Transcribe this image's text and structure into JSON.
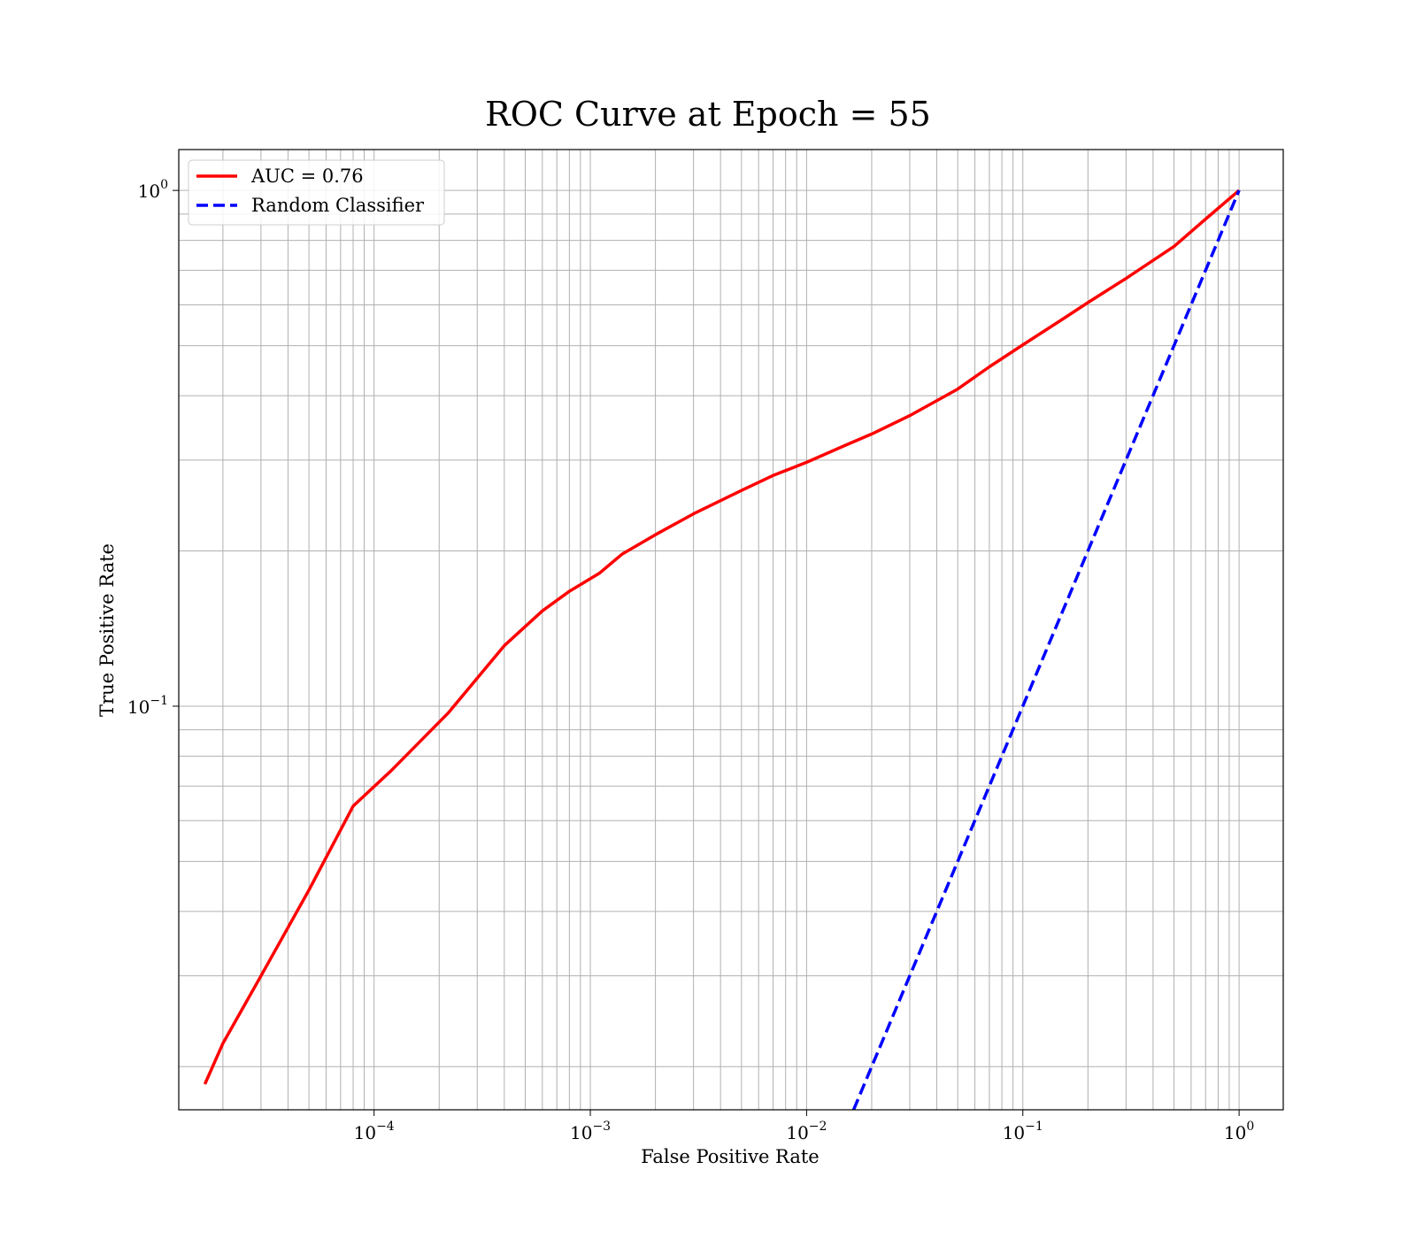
{
  "chart_data": {
    "type": "line",
    "title": "ROC Curve at Epoch = 55",
    "xlabel": "False Positive Rate",
    "ylabel": "True Positive Rate",
    "xscale": "log",
    "yscale": "log",
    "xlim": [
      1.25e-05,
      1.6
    ],
    "ylim": [
      0.0165,
      1.2
    ],
    "grid": "both (major and minor)",
    "legend_position": "top-left",
    "x_ticks": [
      {
        "value": 0.0001,
        "base": "10",
        "exp": "−4"
      },
      {
        "value": 0.001,
        "base": "10",
        "exp": "−3"
      },
      {
        "value": 0.01,
        "base": "10",
        "exp": "−2"
      },
      {
        "value": 0.1,
        "base": "10",
        "exp": "−1"
      },
      {
        "value": 1,
        "base": "10",
        "exp": "0"
      }
    ],
    "y_ticks": [
      {
        "value": 0.1,
        "base": "10",
        "exp": "−1"
      },
      {
        "value": 1,
        "base": "10",
        "exp": "0"
      }
    ],
    "series": [
      {
        "name": "AUC = 0.76",
        "color": "#ff0000",
        "style": "solid",
        "x": [
          1.65e-05,
          2e-05,
          3e-05,
          5e-05,
          8e-05,
          0.00012,
          0.00022,
          0.0004,
          0.0006,
          0.0008,
          0.0011,
          0.0014,
          0.002,
          0.003,
          0.005,
          0.007,
          0.01,
          0.015,
          0.02,
          0.03,
          0.05,
          0.07,
          0.1,
          0.15,
          0.2,
          0.3,
          0.5,
          0.7,
          1.0
        ],
        "y": [
          0.0185,
          0.0222,
          0.03,
          0.044,
          0.064,
          0.075,
          0.097,
          0.131,
          0.153,
          0.167,
          0.181,
          0.197,
          0.215,
          0.236,
          0.262,
          0.28,
          0.297,
          0.32,
          0.337,
          0.366,
          0.412,
          0.455,
          0.502,
          0.56,
          0.606,
          0.675,
          0.779,
          0.88,
          1.0
        ]
      },
      {
        "name": "Random Classifier",
        "color": "#0000ff",
        "style": "dashed",
        "x": [
          0.0165,
          1.0
        ],
        "y": [
          0.0165,
          1.0
        ]
      }
    ]
  }
}
